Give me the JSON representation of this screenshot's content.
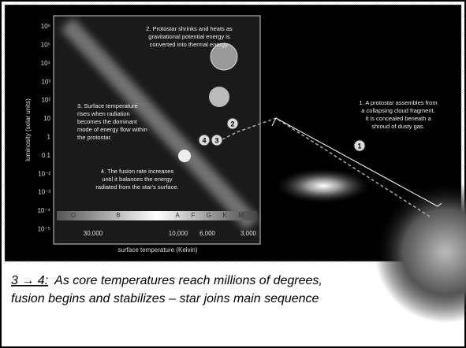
{
  "figure": {
    "y_axis_label": "luminosity (solar units)",
    "y_ticks": [
      "10⁶",
      "10⁵",
      "10⁴",
      "10³",
      "10²",
      "10",
      "1",
      "0.1",
      "10⁻²",
      "10⁻³",
      "10⁻⁴",
      "10⁻⁵"
    ],
    "spectral_classes": [
      "O",
      "B",
      "A",
      "F",
      "G",
      "K",
      "M"
    ],
    "x_ticks": [
      "30,000",
      "10,000",
      "6,000",
      "3,000"
    ],
    "x_axis_label": "surface temperature (Kelvin)",
    "annotations": [
      [
        "1. A protostar assembles from",
        "a collapsing cloud fragment.",
        "It is concealed beneath a",
        "shroud of dusty gas."
      ],
      [
        "2. Protostar shrinks and heats as",
        "gravitational potential energy is",
        "converted into thermal energy."
      ],
      [
        "3. Surface temperature",
        "rises when radiation",
        "becomes the dominant",
        "mode of energy flow within",
        "the protostar."
      ],
      [
        "4. The fusion rate increases",
        "until it balances the energy",
        "radiated from the star's surface."
      ]
    ],
    "markers": [
      "1",
      "2",
      "3",
      "4"
    ]
  },
  "caption": {
    "lead": "3 → 4:",
    "lines": [
      "As core temperatures reach millions of degrees,",
      "fusion begins and stabilizes – star joins main sequence"
    ]
  }
}
